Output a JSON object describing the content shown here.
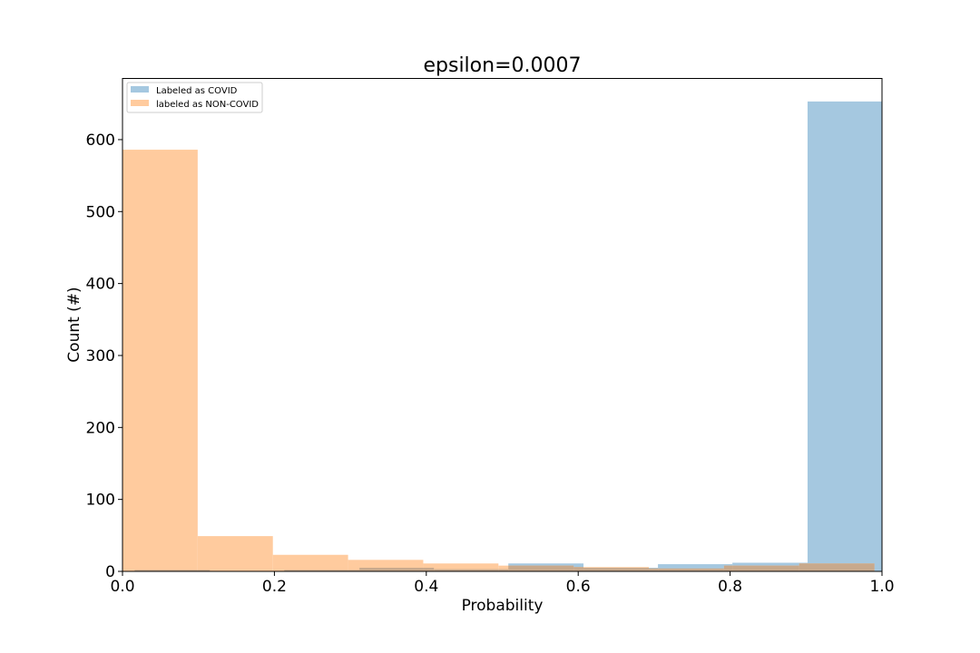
{
  "chart_data": {
    "type": "bar",
    "title": "epsilon=0.0007",
    "xlabel": "Probability",
    "ylabel": "Count (#)",
    "xlim": [
      0.0,
      1.0
    ],
    "ylim": [
      0,
      685
    ],
    "x_ticks": [
      0.0,
      0.2,
      0.4,
      0.6,
      0.8,
      1.0
    ],
    "x_tick_labels": [
      "0.0",
      "0.2",
      "0.4",
      "0.6",
      "0.8",
      "1.0"
    ],
    "y_ticks": [
      0,
      100,
      200,
      300,
      400,
      500,
      600
    ],
    "y_tick_labels": [
      "0",
      "100",
      "200",
      "300",
      "400",
      "500",
      "600"
    ],
    "grid": false,
    "legend_position": "top-left",
    "series": [
      {
        "name": "Labeled as COVID",
        "color": "#a5c8e0",
        "bins": [
          {
            "start": 0.016,
            "end": 0.115,
            "value": 2
          },
          {
            "start": 0.115,
            "end": 0.213,
            "value": 0
          },
          {
            "start": 0.213,
            "end": 0.312,
            "value": 2
          },
          {
            "start": 0.312,
            "end": 0.41,
            "value": 5
          },
          {
            "start": 0.41,
            "end": 0.508,
            "value": 3
          },
          {
            "start": 0.508,
            "end": 0.607,
            "value": 11
          },
          {
            "start": 0.607,
            "end": 0.705,
            "value": 5
          },
          {
            "start": 0.705,
            "end": 0.803,
            "value": 10
          },
          {
            "start": 0.803,
            "end": 0.902,
            "value": 12
          },
          {
            "start": 0.902,
            "end": 1.0,
            "value": 653
          }
        ]
      },
      {
        "name": "labeled as NON-COVID",
        "color": "#ffcb9e",
        "bins": [
          {
            "start": 0.0,
            "end": 0.099,
            "value": 586
          },
          {
            "start": 0.099,
            "end": 0.198,
            "value": 49
          },
          {
            "start": 0.198,
            "end": 0.297,
            "value": 23
          },
          {
            "start": 0.297,
            "end": 0.396,
            "value": 16
          },
          {
            "start": 0.396,
            "end": 0.495,
            "value": 11
          },
          {
            "start": 0.495,
            "end": 0.594,
            "value": 8
          },
          {
            "start": 0.594,
            "end": 0.693,
            "value": 6
          },
          {
            "start": 0.693,
            "end": 0.792,
            "value": 4
          },
          {
            "start": 0.792,
            "end": 0.891,
            "value": 8
          },
          {
            "start": 0.891,
            "end": 0.99,
            "value": 11
          }
        ]
      }
    ],
    "overlap_color": "#c8a98c"
  }
}
